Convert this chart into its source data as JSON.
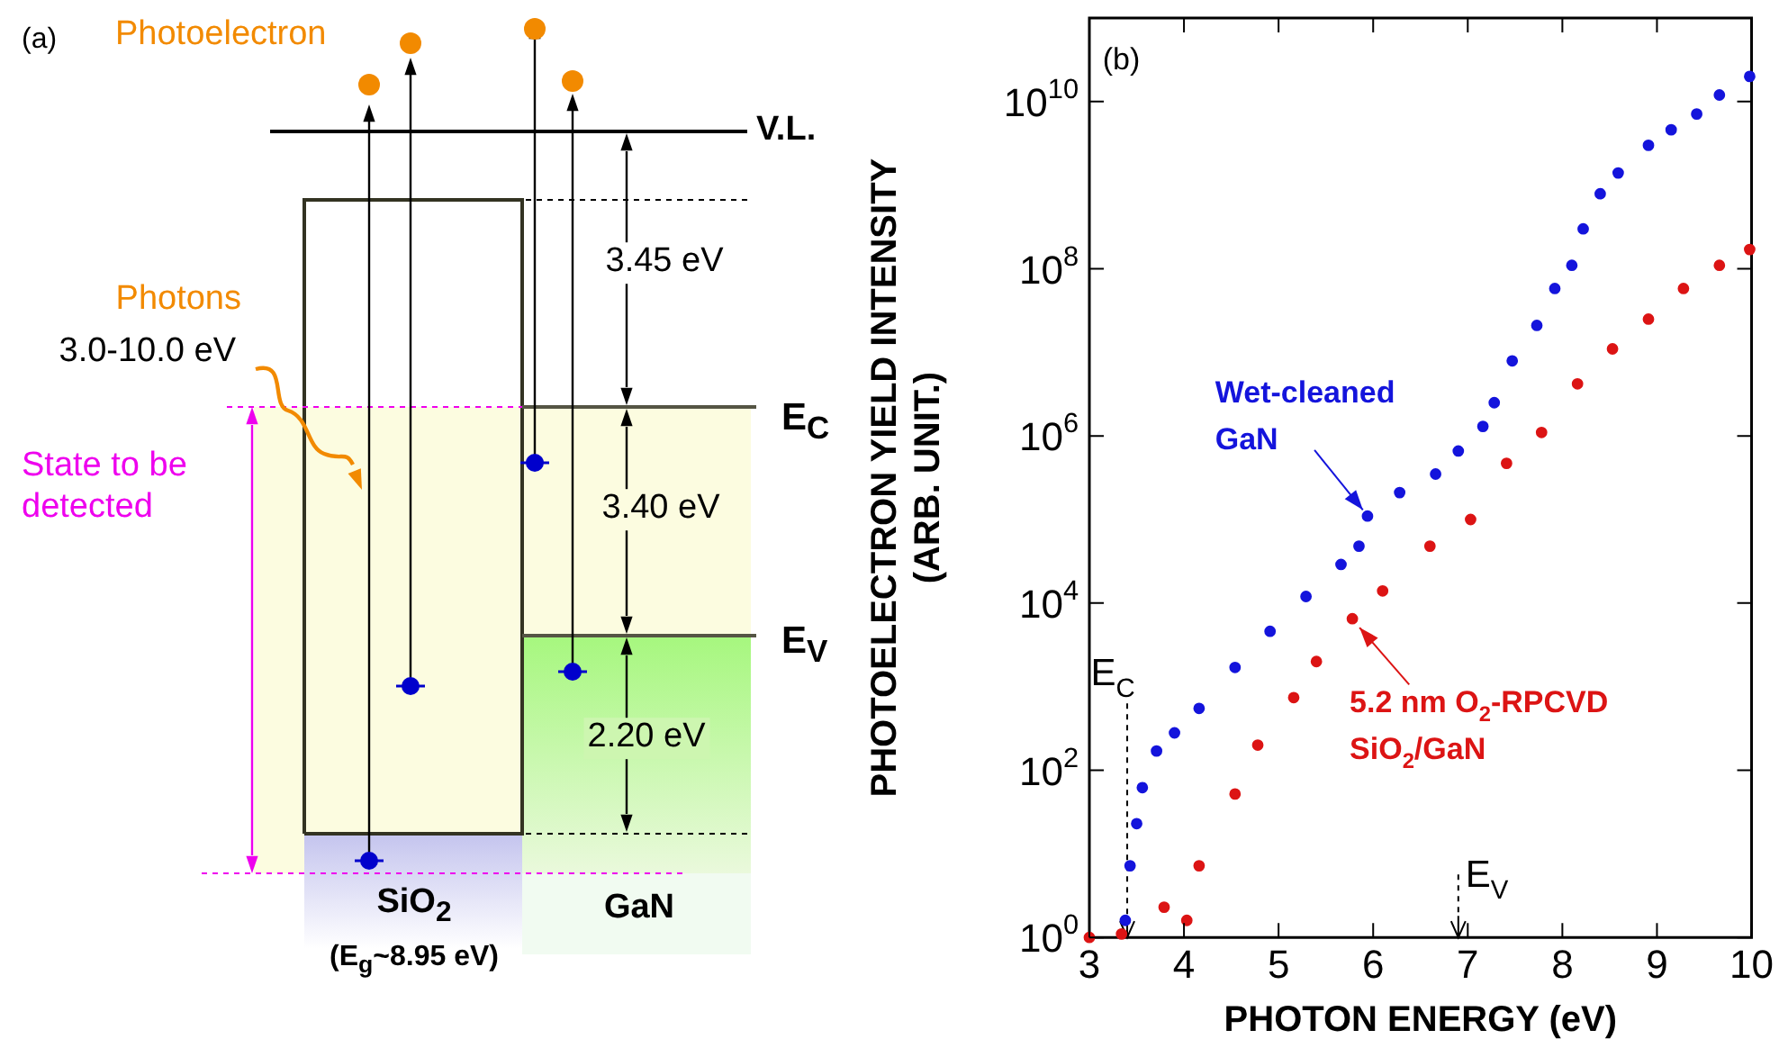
{
  "chart_data": [
    {
      "type": "other",
      "annotations": [
        "(a)",
        "Photoelectron",
        "V.L.",
        "3.45 eV",
        "Photons",
        "3.0-10.0 eV",
        "E$_{C}$",
        "State to be detected",
        "3.40 eV",
        "E$_{V}$",
        "2.20 eV",
        "SiO$_{2}$",
        "(E$_{g}$~8.95 eV)",
        "GaN"
      ]
    },
    {
      "type": "scatter",
      "xlabel": "PHOTON ENERGY (eV)",
      "ylabel": "PHOTOELECTRON YIELD INTENSITY (ARB. UNIT.)",
      "xlim": [
        3,
        10
      ],
      "xticks": [
        3,
        4,
        5,
        6,
        7,
        8,
        9,
        10
      ],
      "ylim": [
        1,
        100000000000
      ],
      "yticks": [
        {
          "value": 1,
          "label": "10$^{0}$"
        },
        {
          "value": 100,
          "label": "10$^{2}$"
        },
        {
          "value": 10000,
          "label": "10$^{4}$"
        },
        {
          "value": 1000000,
          "label": "10$^{6}$"
        },
        {
          "value": 100000000,
          "label": "10$^{8}$"
        },
        {
          "value": 10000000000,
          "label": "10$^{10}$"
        }
      ],
      "log": "y",
      "grid": false,
      "legend": false,
      "marker": "circle",
      "series": [
        {
          "name": "Wet-cleaned GaN",
          "color": "#1414dc",
          "x": [
            3.38,
            3.43,
            3.5,
            3.56,
            3.71,
            3.9,
            4.16,
            4.54,
            4.91,
            5.29,
            5.66,
            5.85,
            5.94,
            6.28,
            6.66,
            6.9,
            7.16,
            7.28,
            7.47,
            7.73,
            7.92,
            8.1,
            8.22,
            8.4,
            8.59,
            8.91,
            9.15,
            9.42,
            9.66,
            9.98
          ],
          "values": [
            1.6,
            7.2,
            23,
            62,
            170,
            280,
            550,
            1700,
            4600,
            12000,
            29000,
            48000,
            110000,
            210000,
            350000,
            660000,
            1300000,
            2500000,
            7900000,
            21000000,
            58000000,
            110000000,
            300000000,
            790000000,
            1400000000,
            3000000000,
            4600000000,
            7100000000,
            12000000000,
            20000000000
          ]
        },
        {
          "name": "5.2 nm O$_{2}$-RPCVD SiO$_{2}$/GaN",
          "color": "#dc1414",
          "x": [
            3.0,
            3.34,
            3.79,
            4.03,
            4.16,
            4.54,
            4.78,
            5.16,
            5.4,
            5.78,
            6.1,
            6.6,
            7.03,
            7.41,
            7.78,
            8.16,
            8.53,
            8.91,
            9.28,
            9.66,
            9.98
          ],
          "values": [
            1.0,
            1.1,
            2.3,
            1.6,
            7.2,
            52,
            200,
            740,
            2000,
            6500,
            14000,
            48000,
            100000,
            470000,
            1100000,
            4200000,
            11000000,
            25000000,
            58000000,
            110000000,
            170000000
          ]
        }
      ],
      "ref_lines": [
        {
          "axis": "x",
          "value": 3.4,
          "label": "E$_{C}$",
          "line_style": "dashed",
          "color": "#000000"
        },
        {
          "axis": "x",
          "value": 6.9,
          "label": "E$_{V}$",
          "line_style": "dashed",
          "color": "#000000"
        }
      ],
      "annotations": [
        "(b)"
      ]
    }
  ]
}
